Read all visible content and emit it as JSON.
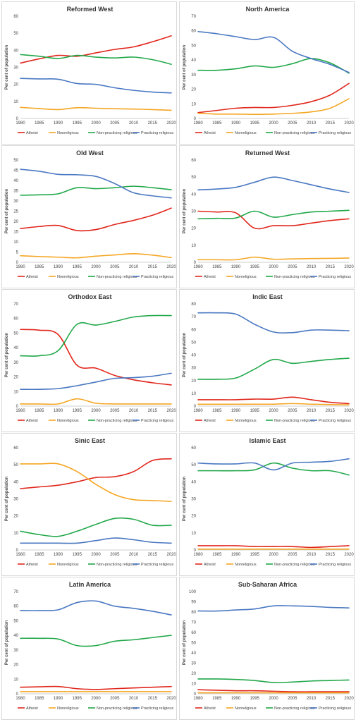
{
  "chart_data": [
    {
      "type": "line",
      "title": "Reformed West",
      "x": [
        1980,
        1985,
        1990,
        1995,
        2000,
        2005,
        2010,
        2015,
        2020
      ],
      "xlabel": "",
      "ylabel": "Per cent of population",
      "ylim": [
        0,
        60
      ],
      "ystep": 10,
      "grid": false,
      "legend_position": "bottom",
      "series": [
        {
          "name": "Atheist",
          "values": [
            32.5,
            35,
            37,
            36.5,
            38.5,
            40.5,
            42,
            45,
            48.5
          ]
        },
        {
          "name": "Nonreligious",
          "values": [
            6.5,
            5.8,
            5.2,
            6.3,
            6,
            5.7,
            5.5,
            5.2,
            4.8
          ]
        },
        {
          "name": "Non-practicing religious",
          "values": [
            37.5,
            36.5,
            35.2,
            37,
            36,
            35.5,
            36,
            34.5,
            31.8
          ]
        },
        {
          "name": "Practicing religious",
          "values": [
            23.5,
            23.2,
            23,
            20.5,
            20,
            18,
            16.5,
            15.5,
            15
          ]
        }
      ]
    },
    {
      "type": "line",
      "title": "North America",
      "x": [
        1980,
        1985,
        1990,
        1995,
        2000,
        2005,
        2010,
        2015,
        2020
      ],
      "xlabel": "",
      "ylabel": "Per cent of population",
      "ylim": [
        0,
        70
      ],
      "ystep": 10,
      "grid": false,
      "legend_position": "bottom",
      "series": [
        {
          "name": "Atheist",
          "values": [
            4,
            5.5,
            7,
            7.5,
            7.5,
            9,
            11.5,
            16,
            24
          ]
        },
        {
          "name": "Nonreligious",
          "values": [
            3.5,
            3,
            3,
            2.8,
            3,
            3.5,
            4.5,
            7,
            13.5
          ]
        },
        {
          "name": "Non-practicing religious",
          "values": [
            33,
            33,
            34,
            36,
            35,
            37.5,
            41,
            38,
            31
          ]
        },
        {
          "name": "Practicing religious",
          "values": [
            59.5,
            58,
            56,
            54,
            55.5,
            46,
            41,
            37,
            31.5
          ]
        }
      ]
    },
    {
      "type": "line",
      "title": "Old West",
      "x": [
        1980,
        1985,
        1990,
        1995,
        2000,
        2005,
        2010,
        2015,
        2020
      ],
      "xlabel": "",
      "ylabel": "Per cent of population",
      "ylim": [
        0,
        50
      ],
      "ystep": 5,
      "grid": false,
      "legend_position": "bottom",
      "series": [
        {
          "name": "Atheist",
          "values": [
            16.5,
            17.5,
            18,
            15.5,
            16,
            18.5,
            20.5,
            23,
            26.5
          ]
        },
        {
          "name": "Nonreligious",
          "values": [
            3.2,
            2.8,
            2.5,
            2.2,
            3,
            3.6,
            4.2,
            3.5,
            2.3
          ]
        },
        {
          "name": "Non-practicing religious",
          "values": [
            32.8,
            33,
            33.5,
            36.5,
            36,
            36.5,
            37.2,
            36.5,
            35.5
          ]
        },
        {
          "name": "Practicing religious",
          "values": [
            45.5,
            44.5,
            43,
            42.8,
            42,
            38.5,
            34,
            32.5,
            31.5
          ]
        }
      ]
    },
    {
      "type": "line",
      "title": "Returned West",
      "x": [
        1980,
        1985,
        1990,
        1995,
        2000,
        2005,
        2010,
        2015,
        2020
      ],
      "xlabel": "",
      "ylabel": "Per cent of population",
      "ylim": [
        0,
        60
      ],
      "ystep": 10,
      "grid": false,
      "legend_position": "bottom",
      "series": [
        {
          "name": "Atheist",
          "values": [
            30,
            29.5,
            29,
            20,
            21.5,
            21.5,
            23,
            24.5,
            25.5
          ]
        },
        {
          "name": "Nonreligious",
          "values": [
            1.5,
            1.5,
            1.5,
            3,
            1.8,
            2,
            2.2,
            2.3,
            2.5
          ]
        },
        {
          "name": "Non-practicing religious",
          "values": [
            25.5,
            25.8,
            26,
            30,
            26.5,
            28,
            29.5,
            30,
            30.5
          ]
        },
        {
          "name": "Practicing religious",
          "values": [
            42.5,
            43,
            44,
            47,
            50,
            48,
            45.5,
            43,
            41
          ]
        }
      ]
    },
    {
      "type": "line",
      "title": "Orthodox East",
      "x": [
        1980,
        1985,
        1990,
        1995,
        2000,
        2005,
        2010,
        2015,
        2020
      ],
      "xlabel": "",
      "ylabel": "Per cent of population",
      "ylim": [
        0,
        70
      ],
      "ystep": 10,
      "grid": false,
      "legend_position": "bottom",
      "series": [
        {
          "name": "Atheist",
          "values": [
            52.5,
            52,
            49,
            28,
            26,
            21,
            18,
            16,
            14.5
          ]
        },
        {
          "name": "Nonreligious",
          "values": [
            1.5,
            1.5,
            1.5,
            5,
            2,
            1.5,
            1.5,
            1.5,
            1.5
          ]
        },
        {
          "name": "Non-practicing religious",
          "values": [
            34.5,
            34.5,
            38,
            56,
            55.5,
            58,
            61,
            62,
            62
          ]
        },
        {
          "name": "Practicing religious",
          "values": [
            11.5,
            11.5,
            12,
            14,
            16.5,
            19,
            19.5,
            20.5,
            22.5
          ]
        }
      ]
    },
    {
      "type": "line",
      "title": "Indic East",
      "x": [
        1980,
        1985,
        1990,
        1995,
        2000,
        2005,
        2010,
        2015,
        2020
      ],
      "xlabel": "",
      "ylabel": "Per cent of population",
      "ylim": [
        0,
        80
      ],
      "ystep": 10,
      "grid": false,
      "legend_position": "bottom",
      "series": [
        {
          "name": "Atheist",
          "values": [
            5,
            5,
            5,
            5.5,
            5.5,
            7,
            5,
            3,
            2
          ]
        },
        {
          "name": "Nonreligious",
          "values": [
            1.5,
            1.5,
            1.5,
            1.5,
            1.5,
            2,
            1.5,
            1.2,
            1
          ]
        },
        {
          "name": "Non-practicing religious",
          "values": [
            21,
            21,
            22,
            29,
            36.5,
            33.5,
            35,
            36.5,
            37.5
          ]
        },
        {
          "name": "Practicing religious",
          "values": [
            73,
            73,
            72,
            64,
            58,
            57.5,
            59.5,
            59.5,
            59
          ]
        }
      ]
    },
    {
      "type": "line",
      "title": "Sinic East",
      "x": [
        1980,
        1985,
        1990,
        1995,
        2000,
        2005,
        2010,
        2015,
        2020
      ],
      "xlabel": "",
      "ylabel": "Per cent of population",
      "ylim": [
        0,
        60
      ],
      "ystep": 10,
      "grid": false,
      "legend_position": "bottom",
      "series": [
        {
          "name": "Atheist",
          "values": [
            36,
            37,
            38,
            40,
            42.5,
            43,
            46,
            52.5,
            53.5
          ]
        },
        {
          "name": "Nonreligious",
          "values": [
            50.5,
            50.5,
            50.5,
            46,
            38.5,
            32.5,
            29.5,
            29,
            28.5
          ]
        },
        {
          "name": "Non-practicing religious",
          "values": [
            11,
            9,
            8,
            11,
            15,
            18.5,
            18,
            14.5,
            14.5
          ]
        },
        {
          "name": "Practicing religious",
          "values": [
            4,
            4,
            4,
            4,
            5.5,
            7,
            6,
            4.5,
            4
          ]
        }
      ]
    },
    {
      "type": "line",
      "title": "Islamic East",
      "x": [
        1980,
        1985,
        1990,
        1995,
        2000,
        2005,
        2010,
        2015,
        2020
      ],
      "xlabel": "",
      "ylabel": "Per cent of population",
      "ylim": [
        0,
        60
      ],
      "ystep": 10,
      "grid": false,
      "legend_position": "bottom",
      "series": [
        {
          "name": "Atheist",
          "values": [
            2.5,
            2.5,
            2.5,
            2,
            2,
            2,
            1.5,
            2,
            2.5
          ]
        },
        {
          "name": "Nonreligious",
          "values": [
            0.5,
            0.5,
            0.5,
            0.5,
            0.5,
            0.5,
            0.5,
            0.5,
            0.5
          ]
        },
        {
          "name": "Non-practicing religious",
          "values": [
            46.5,
            46.5,
            46.5,
            47,
            51,
            48,
            46.5,
            46.5,
            44
          ]
        },
        {
          "name": "Practicing religious",
          "values": [
            51,
            50.5,
            50.5,
            51,
            47,
            51,
            51.5,
            52,
            53.5
          ]
        }
      ]
    },
    {
      "type": "line",
      "title": "Latin America",
      "x": [
        1980,
        1985,
        1990,
        1995,
        2000,
        2005,
        2010,
        2015,
        2020
      ],
      "xlabel": "",
      "ylabel": "Per cent of population",
      "ylim": [
        0,
        70
      ],
      "ystep": 10,
      "grid": false,
      "legend_position": "bottom",
      "series": [
        {
          "name": "Atheist",
          "values": [
            4.5,
            4.8,
            5,
            3.5,
            3,
            3.5,
            4,
            4.5,
            5
          ]
        },
        {
          "name": "Nonreligious",
          "values": [
            1.5,
            1.5,
            1.5,
            1.5,
            1.5,
            1.5,
            1.5,
            1.5,
            1.5
          ]
        },
        {
          "name": "Non-practicing religious",
          "values": [
            38,
            38,
            37.5,
            33,
            33,
            36,
            37,
            38.5,
            40
          ]
        },
        {
          "name": "Practicing religious",
          "values": [
            57,
            57,
            57.5,
            62.5,
            63.5,
            60,
            58.5,
            56.5,
            54
          ]
        }
      ]
    },
    {
      "type": "line",
      "title": "Sub-Saharan Africa",
      "x": [
        1980,
        1985,
        1990,
        1995,
        2000,
        2005,
        2010,
        2015,
        2020
      ],
      "xlabel": "",
      "ylabel": "Per cent of population",
      "ylim": [
        0,
        100
      ],
      "ystep": 10,
      "grid": false,
      "legend_position": "bottom",
      "series": [
        {
          "name": "Atheist",
          "values": [
            4,
            3.5,
            3,
            3,
            2.5,
            2,
            2,
            2,
            2
          ]
        },
        {
          "name": "Nonreligious",
          "values": [
            1,
            1,
            1,
            1,
            1,
            1,
            1,
            1,
            1
          ]
        },
        {
          "name": "Non-practicing religious",
          "values": [
            14.5,
            14.5,
            14,
            13,
            11,
            11.5,
            12.5,
            13,
            13.5
          ]
        },
        {
          "name": "Practicing religious",
          "values": [
            81,
            81,
            82,
            83,
            86,
            86,
            85.5,
            84.5,
            84
          ]
        }
      ]
    }
  ],
  "series_colors": {
    "Atheist": "#e0271c",
    "Nonreligious": "#f5a623",
    "Non-practicing religious": "#22a84a",
    "Practicing religious": "#4a78c2"
  },
  "axis_color": "#bfbfbf",
  "border_color": "#d9d9d9"
}
